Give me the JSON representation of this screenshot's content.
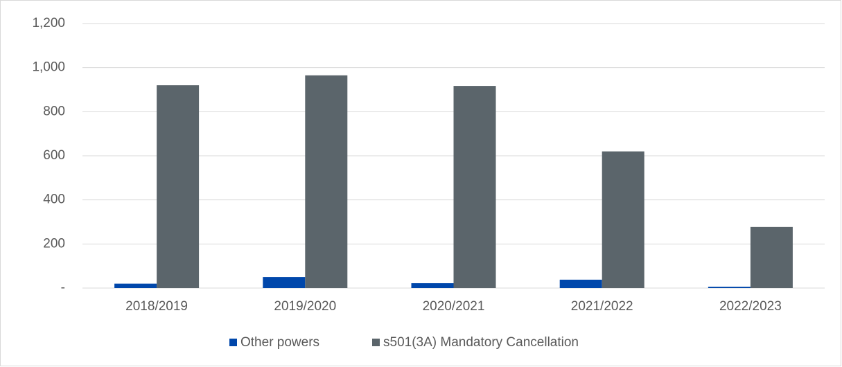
{
  "chart_data": {
    "type": "bar",
    "categories": [
      "2018/2019",
      "2019/2020",
      "2020/2021",
      "2021/2022",
      "2022/2023"
    ],
    "series": [
      {
        "name": "Other powers",
        "color": "#0047ab",
        "values": [
          20,
          50,
          22,
          38,
          6
        ]
      },
      {
        "name": "s501(3A) Mandatory Cancellation",
        "color": "#5b656b",
        "values": [
          920,
          965,
          917,
          620,
          277
        ]
      }
    ],
    "ylim": [
      0,
      1200
    ],
    "yticks": [
      {
        "value": 0,
        "label": "-"
      },
      200,
      400,
      600,
      800,
      {
        "value": 1000,
        "label": "1,000"
      },
      {
        "value": 1200,
        "label": "1,200"
      }
    ],
    "grid": true,
    "legend": "bottom"
  }
}
